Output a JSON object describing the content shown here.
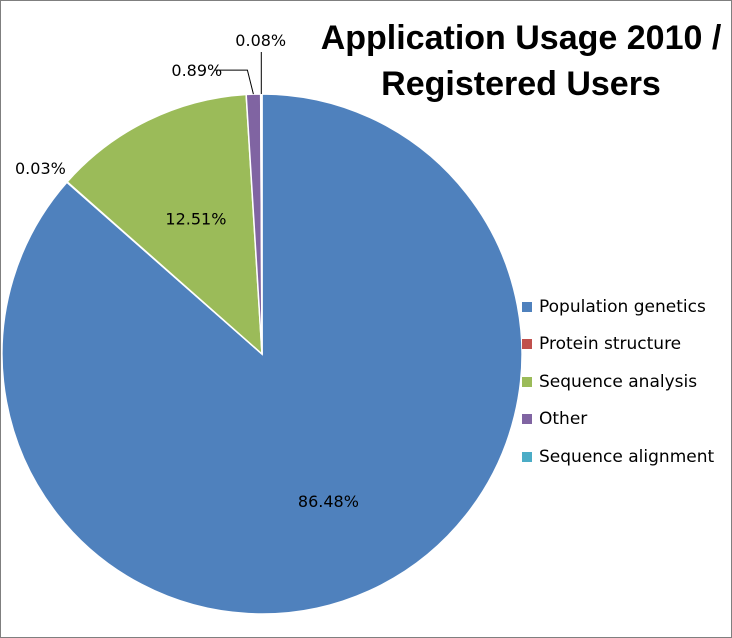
{
  "chart_data": {
    "type": "pie",
    "title": [
      "Application Usage 2010 /",
      "Registered Users"
    ],
    "legend_position": "right",
    "slices": [
      {
        "name": "Population genetics",
        "value": 86.48,
        "label": "86.48%",
        "color": "#4f81bd"
      },
      {
        "name": "Protein structure",
        "value": 0.03,
        "label": "0.03%",
        "color": "#c0504d"
      },
      {
        "name": "Sequence analysis",
        "value": 12.51,
        "label": "12.51%",
        "color": "#9bbb59"
      },
      {
        "name": "Other",
        "value": 0.89,
        "label": "0.89%",
        "color": "#8064a2"
      },
      {
        "name": "Sequence alignment",
        "value": 0.08,
        "label": "0.08%",
        "color": "#4bacc6"
      }
    ]
  }
}
